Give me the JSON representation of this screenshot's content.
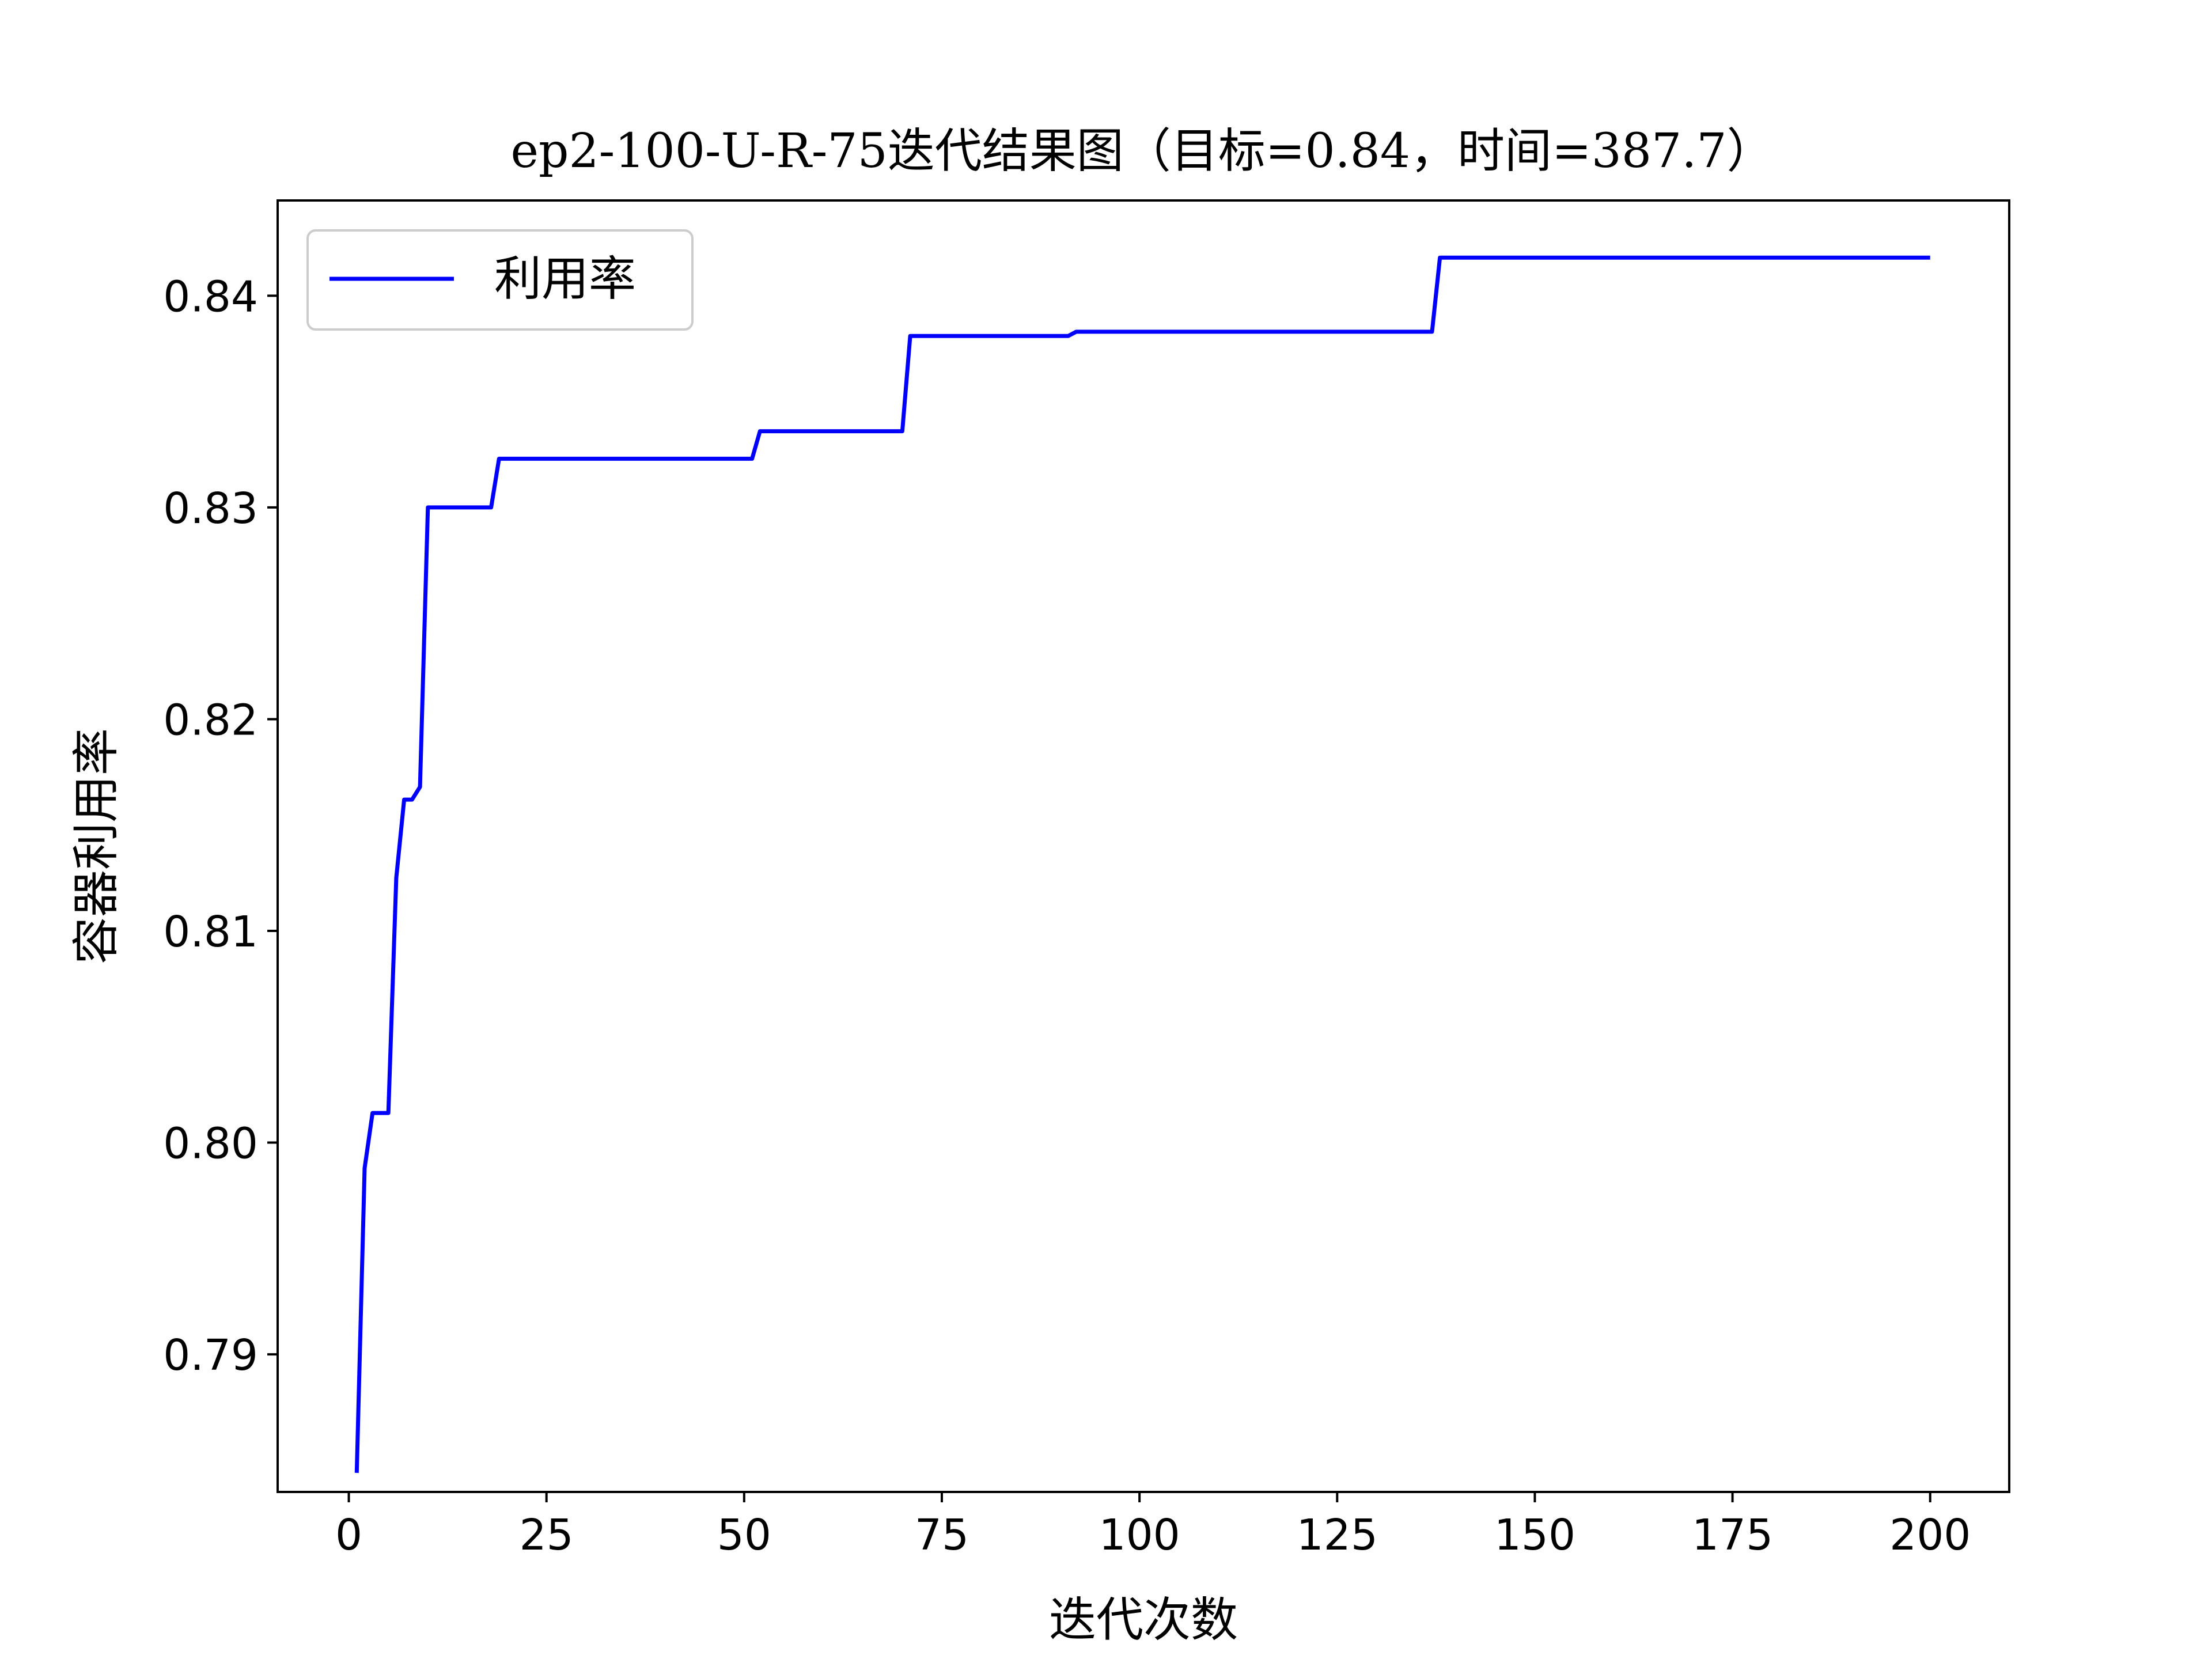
{
  "chart_data": {
    "type": "line",
    "title": "ep2-100-U-R-75迭代结果图（目标=0.84，时间=387.7）",
    "xlabel": "迭代次数",
    "ylabel": "容器利用率",
    "xlim": [
      -9,
      210
    ],
    "ylim": [
      0.7835,
      0.8445
    ],
    "xticks": [
      0,
      25,
      50,
      75,
      100,
      125,
      150,
      175,
      200
    ],
    "xtick_labels": [
      "0",
      "25",
      "50",
      "75",
      "100",
      "125",
      "150",
      "175",
      "200"
    ],
    "yticks": [
      0.79,
      0.8,
      0.81,
      0.82,
      0.83,
      0.84
    ],
    "ytick_labels": [
      "0.79",
      "0.80",
      "0.81",
      "0.82",
      "0.83",
      "0.84"
    ],
    "legend_position": "upper-left",
    "grid": false,
    "series": [
      {
        "name": "利用率",
        "color": "#0000ff",
        "x": [
          1,
          2,
          3,
          4,
          5,
          6,
          7,
          8,
          9,
          10,
          18,
          19,
          51,
          52,
          70,
          71,
          91,
          92,
          137,
          138,
          200
        ],
        "y": [
          0.7844,
          0.7988,
          0.8014,
          0.8014,
          0.8014,
          0.8125,
          0.8162,
          0.8162,
          0.8168,
          0.83,
          0.83,
          0.8323,
          0.8323,
          0.8336,
          0.8336,
          0.8381,
          0.8381,
          0.8383,
          0.8383,
          0.8418,
          0.8418
        ]
      }
    ]
  }
}
